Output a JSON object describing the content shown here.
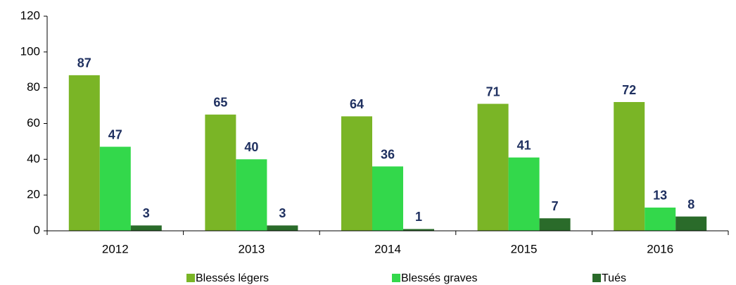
{
  "chart_data": {
    "type": "bar",
    "categories": [
      "2012",
      "2013",
      "2014",
      "2015",
      "2016"
    ],
    "series": [
      {
        "name": "Blessés légers",
        "color": "#7ab526",
        "values": [
          87,
          65,
          64,
          71,
          72
        ]
      },
      {
        "name": "Blessés graves",
        "color": "#33d84b",
        "values": [
          47,
          40,
          36,
          41,
          13
        ]
      },
      {
        "name": "Tués",
        "color": "#2a6b2a",
        "values": [
          3,
          3,
          1,
          7,
          8
        ]
      }
    ],
    "ylim": [
      0,
      120
    ],
    "yticks": [
      0,
      20,
      40,
      60,
      80,
      100,
      120
    ],
    "grid": false,
    "legend": "bottom"
  }
}
